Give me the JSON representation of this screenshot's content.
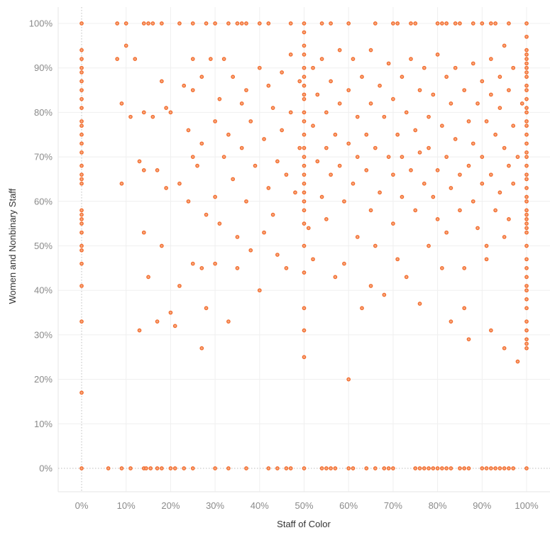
{
  "chart_data": {
    "type": "scatter",
    "title": "",
    "xlabel": "Staff of Color",
    "ylabel": "Women and Nonbinary Staff",
    "xlim": [
      0,
      100
    ],
    "ylim": [
      0,
      100
    ],
    "x_ticks": [
      "0%",
      "10%",
      "20%",
      "30%",
      "40%",
      "50%",
      "60%",
      "70%",
      "80%",
      "90%",
      "100%"
    ],
    "y_ticks": [
      "0%",
      "10%",
      "20%",
      "30%",
      "40%",
      "50%",
      "60%",
      "70%",
      "80%",
      "90%",
      "100%"
    ],
    "grid": true,
    "colors": {
      "point": "#f26b2b",
      "point_fill": "#f7a57c",
      "grid": "#efefef",
      "tick_text": "#8a8a8a",
      "label_text": "#333333"
    },
    "points": [
      [
        0,
        100
      ],
      [
        8,
        100
      ],
      [
        10,
        100
      ],
      [
        14,
        100
      ],
      [
        15,
        100
      ],
      [
        16,
        100
      ],
      [
        18,
        100
      ],
      [
        22,
        100
      ],
      [
        25,
        100
      ],
      [
        28,
        100
      ],
      [
        30,
        100
      ],
      [
        33,
        100
      ],
      [
        35,
        100
      ],
      [
        36,
        100
      ],
      [
        37,
        100
      ],
      [
        40,
        100
      ],
      [
        42,
        100
      ],
      [
        47,
        100
      ],
      [
        50,
        100
      ],
      [
        54,
        100
      ],
      [
        56,
        100
      ],
      [
        60,
        100
      ],
      [
        66,
        100
      ],
      [
        70,
        100
      ],
      [
        71,
        100
      ],
      [
        74,
        100
      ],
      [
        75,
        100
      ],
      [
        80,
        100
      ],
      [
        81,
        100
      ],
      [
        82,
        100
      ],
      [
        84,
        100
      ],
      [
        85,
        100
      ],
      [
        88,
        100
      ],
      [
        90,
        100
      ],
      [
        92,
        100
      ],
      [
        93,
        100
      ],
      [
        96,
        100
      ],
      [
        100,
        100
      ],
      [
        0,
        0
      ],
      [
        6,
        0
      ],
      [
        9,
        0
      ],
      [
        11,
        0
      ],
      [
        14,
        0
      ],
      [
        14.5,
        0
      ],
      [
        15.5,
        0
      ],
      [
        17,
        0
      ],
      [
        18,
        0
      ],
      [
        20,
        0
      ],
      [
        21,
        0
      ],
      [
        23,
        0
      ],
      [
        25,
        0
      ],
      [
        30,
        0
      ],
      [
        33,
        0
      ],
      [
        37,
        0
      ],
      [
        42,
        0
      ],
      [
        44,
        0
      ],
      [
        46,
        0
      ],
      [
        47,
        0
      ],
      [
        50,
        0
      ],
      [
        54,
        0
      ],
      [
        55,
        0
      ],
      [
        56,
        0
      ],
      [
        57,
        0
      ],
      [
        60,
        0
      ],
      [
        61,
        0
      ],
      [
        64,
        0
      ],
      [
        66,
        0
      ],
      [
        68,
        0
      ],
      [
        69,
        0
      ],
      [
        70,
        0
      ],
      [
        75,
        0
      ],
      [
        76,
        0
      ],
      [
        77,
        0
      ],
      [
        78,
        0
      ],
      [
        79,
        0
      ],
      [
        80,
        0
      ],
      [
        81,
        0
      ],
      [
        82,
        0
      ],
      [
        83,
        0
      ],
      [
        85,
        0
      ],
      [
        86,
        0
      ],
      [
        87,
        0
      ],
      [
        90,
        0
      ],
      [
        91,
        0
      ],
      [
        92,
        0
      ],
      [
        93,
        0
      ],
      [
        94,
        0
      ],
      [
        95,
        0
      ],
      [
        96,
        0
      ],
      [
        97,
        0
      ],
      [
        100,
        0
      ],
      [
        0,
        94
      ],
      [
        0,
        92
      ],
      [
        0,
        90
      ],
      [
        0,
        89
      ],
      [
        0,
        87
      ],
      [
        0,
        85
      ],
      [
        0,
        83
      ],
      [
        0,
        81
      ],
      [
        0,
        78
      ],
      [
        0,
        77
      ],
      [
        0,
        75
      ],
      [
        0,
        73
      ],
      [
        0,
        71
      ],
      [
        0,
        68
      ],
      [
        0,
        66
      ],
      [
        0,
        65
      ],
      [
        0,
        64
      ],
      [
        0,
        58
      ],
      [
        0,
        57
      ],
      [
        0,
        56
      ],
      [
        0,
        55
      ],
      [
        0,
        53
      ],
      [
        0,
        50
      ],
      [
        0,
        49
      ],
      [
        0,
        46
      ],
      [
        0,
        41
      ],
      [
        0,
        33
      ],
      [
        0,
        17
      ],
      [
        100,
        97
      ],
      [
        100,
        94
      ],
      [
        100,
        93
      ],
      [
        100,
        92
      ],
      [
        100,
        91
      ],
      [
        100,
        90
      ],
      [
        100,
        89
      ],
      [
        100,
        88
      ],
      [
        100,
        86
      ],
      [
        100,
        85
      ],
      [
        100,
        83
      ],
      [
        100,
        81
      ],
      [
        100,
        80
      ],
      [
        100,
        78
      ],
      [
        100,
        77
      ],
      [
        100,
        75
      ],
      [
        100,
        73
      ],
      [
        100,
        71
      ],
      [
        100,
        70
      ],
      [
        100,
        68
      ],
      [
        100,
        66
      ],
      [
        100,
        65
      ],
      [
        100,
        63
      ],
      [
        100,
        61
      ],
      [
        100,
        60
      ],
      [
        100,
        58
      ],
      [
        100,
        57
      ],
      [
        100,
        56
      ],
      [
        100,
        55
      ],
      [
        100,
        54
      ],
      [
        100,
        53
      ],
      [
        100,
        50
      ],
      [
        100,
        47
      ],
      [
        100,
        45
      ],
      [
        100,
        43
      ],
      [
        100,
        41
      ],
      [
        100,
        40
      ],
      [
        100,
        38
      ],
      [
        100,
        36
      ],
      [
        100,
        33
      ],
      [
        100,
        31
      ],
      [
        100,
        29
      ],
      [
        100,
        28
      ],
      [
        100,
        27
      ],
      [
        50,
        98
      ],
      [
        50,
        95
      ],
      [
        50,
        93
      ],
      [
        50,
        90
      ],
      [
        50,
        88
      ],
      [
        50,
        86
      ],
      [
        50,
        84
      ],
      [
        50,
        83
      ],
      [
        50,
        80
      ],
      [
        50,
        78
      ],
      [
        50,
        75
      ],
      [
        50,
        72
      ],
      [
        50,
        70
      ],
      [
        50,
        68
      ],
      [
        50,
        66
      ],
      [
        50,
        64
      ],
      [
        50,
        62
      ],
      [
        50,
        60
      ],
      [
        50,
        58
      ],
      [
        50,
        55
      ],
      [
        50,
        50
      ],
      [
        50,
        44
      ],
      [
        50,
        36
      ],
      [
        50,
        31
      ],
      [
        50,
        25
      ],
      [
        8,
        92
      ],
      [
        9,
        64
      ],
      [
        9,
        82
      ],
      [
        10,
        95
      ],
      [
        11,
        79
      ],
      [
        12,
        92
      ],
      [
        13,
        69
      ],
      [
        13,
        31
      ],
      [
        14,
        80
      ],
      [
        14,
        67
      ],
      [
        14,
        53
      ],
      [
        15,
        43
      ],
      [
        16,
        79
      ],
      [
        17,
        67
      ],
      [
        17,
        33
      ],
      [
        18,
        87
      ],
      [
        18,
        50
      ],
      [
        19,
        81
      ],
      [
        19,
        63
      ],
      [
        20,
        80
      ],
      [
        20,
        35
      ],
      [
        21,
        32
      ],
      [
        22,
        64
      ],
      [
        22,
        41
      ],
      [
        23,
        86
      ],
      [
        24,
        76
      ],
      [
        24,
        60
      ],
      [
        25,
        92
      ],
      [
        25,
        85
      ],
      [
        25,
        70
      ],
      [
        25,
        46
      ],
      [
        26,
        68
      ],
      [
        27,
        88
      ],
      [
        27,
        73
      ],
      [
        27,
        45
      ],
      [
        27,
        27
      ],
      [
        28,
        36
      ],
      [
        28,
        57
      ],
      [
        29,
        92
      ],
      [
        30,
        78
      ],
      [
        30,
        61
      ],
      [
        30,
        46
      ],
      [
        31,
        83
      ],
      [
        31,
        55
      ],
      [
        32,
        92
      ],
      [
        32,
        70
      ],
      [
        33,
        75
      ],
      [
        33,
        33
      ],
      [
        34,
        88
      ],
      [
        34,
        65
      ],
      [
        35,
        52
      ],
      [
        35,
        45
      ],
      [
        36,
        82
      ],
      [
        36,
        72
      ],
      [
        37,
        60
      ],
      [
        37,
        85
      ],
      [
        38,
        78
      ],
      [
        38,
        49
      ],
      [
        39,
        68
      ],
      [
        40,
        90
      ],
      [
        40,
        40
      ],
      [
        41,
        74
      ],
      [
        41,
        53
      ],
      [
        42,
        63
      ],
      [
        42,
        86
      ],
      [
        43,
        81
      ],
      [
        43,
        57
      ],
      [
        44,
        69
      ],
      [
        44,
        48
      ],
      [
        45,
        89
      ],
      [
        45,
        76
      ],
      [
        46,
        66
      ],
      [
        46,
        45
      ],
      [
        47,
        93
      ],
      [
        47,
        80
      ],
      [
        48,
        62
      ],
      [
        49,
        72
      ],
      [
        49,
        87
      ],
      [
        51,
        54
      ],
      [
        52,
        90
      ],
      [
        52,
        77
      ],
      [
        52,
        47
      ],
      [
        53,
        84
      ],
      [
        53,
        69
      ],
      [
        54,
        61
      ],
      [
        54,
        92
      ],
      [
        55,
        80
      ],
      [
        55,
        72
      ],
      [
        55,
        56
      ],
      [
        56,
        87
      ],
      [
        56,
        66
      ],
      [
        57,
        75
      ],
      [
        57,
        43
      ],
      [
        58,
        94
      ],
      [
        58,
        82
      ],
      [
        58,
        68
      ],
      [
        59,
        60
      ],
      [
        59,
        46
      ],
      [
        60,
        85
      ],
      [
        60,
        73
      ],
      [
        60,
        20
      ],
      [
        61,
        92
      ],
      [
        61,
        64
      ],
      [
        62,
        79
      ],
      [
        62,
        70
      ],
      [
        62,
        52
      ],
      [
        63,
        88
      ],
      [
        63,
        36
      ],
      [
        64,
        75
      ],
      [
        64,
        67
      ],
      [
        65,
        94
      ],
      [
        65,
        82
      ],
      [
        65,
        58
      ],
      [
        65,
        41
      ],
      [
        66,
        72
      ],
      [
        66,
        50
      ],
      [
        67,
        86
      ],
      [
        67,
        62
      ],
      [
        68,
        79
      ],
      [
        68,
        39
      ],
      [
        69,
        91
      ],
      [
        69,
        70
      ],
      [
        70,
        83
      ],
      [
        70,
        66
      ],
      [
        70,
        55
      ],
      [
        71,
        75
      ],
      [
        71,
        47
      ],
      [
        72,
        88
      ],
      [
        72,
        70
      ],
      [
        72,
        61
      ],
      [
        73,
        80
      ],
      [
        73,
        43
      ],
      [
        74,
        92
      ],
      [
        74,
        67
      ],
      [
        75,
        76
      ],
      [
        75,
        58
      ],
      [
        76,
        85
      ],
      [
        76,
        71
      ],
      [
        76,
        37
      ],
      [
        77,
        64
      ],
      [
        77,
        90
      ],
      [
        78,
        79
      ],
      [
        78,
        50
      ],
      [
        78,
        72
      ],
      [
        79,
        84
      ],
      [
        79,
        61
      ],
      [
        80,
        93
      ],
      [
        80,
        67
      ],
      [
        80,
        56
      ],
      [
        81,
        77
      ],
      [
        81,
        45
      ],
      [
        82,
        88
      ],
      [
        82,
        70
      ],
      [
        82,
        53
      ],
      [
        83,
        82
      ],
      [
        83,
        63
      ],
      [
        83,
        33
      ],
      [
        84,
        74
      ],
      [
        84,
        90
      ],
      [
        85,
        66
      ],
      [
        85,
        58
      ],
      [
        86,
        85
      ],
      [
        86,
        45
      ],
      [
        86,
        36
      ],
      [
        87,
        78
      ],
      [
        87,
        68
      ],
      [
        87,
        29
      ],
      [
        88,
        91
      ],
      [
        88,
        73
      ],
      [
        88,
        60
      ],
      [
        89,
        82
      ],
      [
        89,
        54
      ],
      [
        90,
        87
      ],
      [
        90,
        70
      ],
      [
        90,
        64
      ],
      [
        91,
        78
      ],
      [
        91,
        50
      ],
      [
        91,
        47
      ],
      [
        92,
        92
      ],
      [
        92,
        84
      ],
      [
        92,
        66
      ],
      [
        92,
        31
      ],
      [
        93,
        75
      ],
      [
        93,
        58
      ],
      [
        94,
        88
      ],
      [
        94,
        81
      ],
      [
        94,
        62
      ],
      [
        95,
        95
      ],
      [
        95,
        72
      ],
      [
        95,
        52
      ],
      [
        95,
        27
      ],
      [
        96,
        85
      ],
      [
        96,
        68
      ],
      [
        96,
        56
      ],
      [
        97,
        90
      ],
      [
        97,
        77
      ],
      [
        97,
        64
      ],
      [
        98,
        70
      ],
      [
        98,
        24
      ],
      [
        99,
        82
      ]
    ]
  }
}
